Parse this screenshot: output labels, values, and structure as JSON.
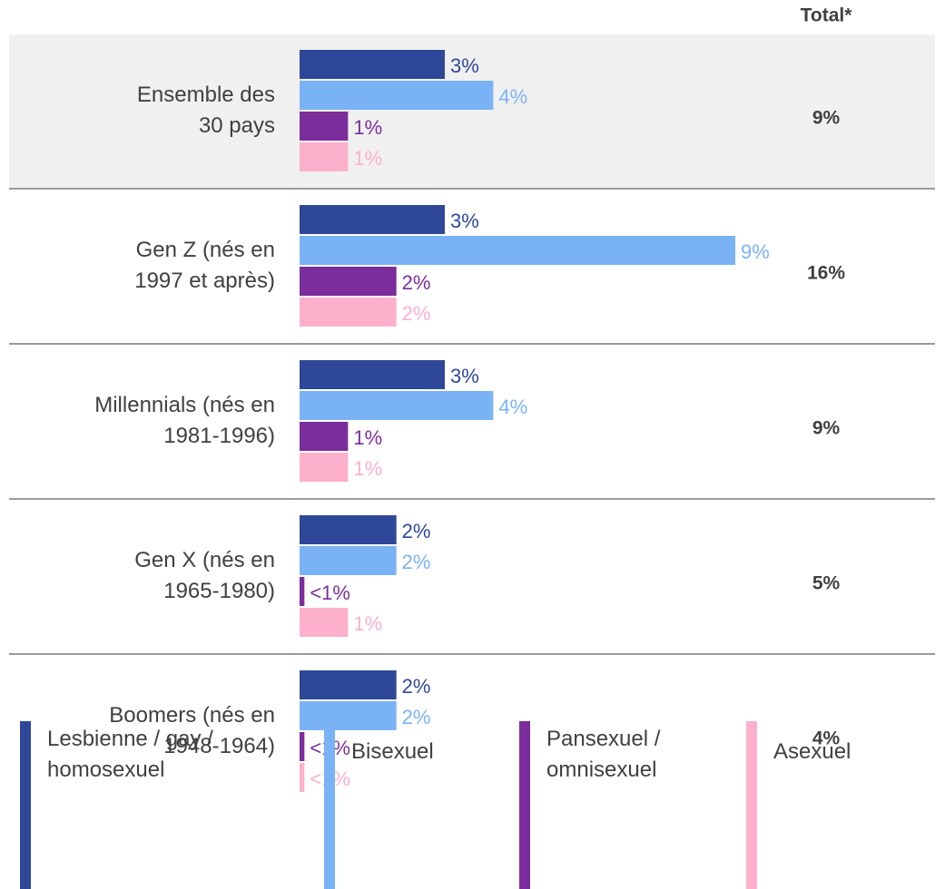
{
  "chart_data": {
    "type": "bar",
    "orientation": "horizontal",
    "categories": [
      "Ensemble des\n30 pays",
      "Gen Z (nés en\n1997 et après)",
      "Millennials (nés en\n1981-1996)",
      "Gen X (nés en\n1965-1980)",
      "Boomers (nés en\n1948-1964)"
    ],
    "series": [
      {
        "name": "Lesbienne / gay /\nhomosexuel",
        "color": "#2e4799",
        "values": [
          3,
          3,
          3,
          2,
          2
        ],
        "value_labels": [
          "3%",
          "3%",
          "3%",
          "2%",
          "2%"
        ]
      },
      {
        "name": "Bisexuel",
        "color": "#7ab3f5",
        "values": [
          4,
          9,
          4,
          2,
          2
        ],
        "value_labels": [
          "4%",
          "9%",
          "4%",
          "2%",
          "2%"
        ]
      },
      {
        "name": "Pansexuel /\nomnisexuel",
        "color": "#7b2d9b",
        "values": [
          1,
          2,
          1,
          0.1,
          0.1
        ],
        "value_labels": [
          "1%",
          "2%",
          "1%",
          "<1%",
          "<1%"
        ]
      },
      {
        "name": "Asexuel",
        "color": "#fdb0cb",
        "values": [
          1,
          2,
          1,
          1,
          0.1
        ],
        "value_labels": [
          "1%",
          "2%",
          "1%",
          "1%",
          "<1%"
        ]
      }
    ],
    "totals": {
      "label": "Total*",
      "values": [
        9,
        16,
        9,
        5,
        4
      ],
      "value_labels": [
        "9%",
        "16%",
        "9%",
        "5%",
        "4%"
      ]
    },
    "xlim": [
      0,
      9
    ]
  }
}
